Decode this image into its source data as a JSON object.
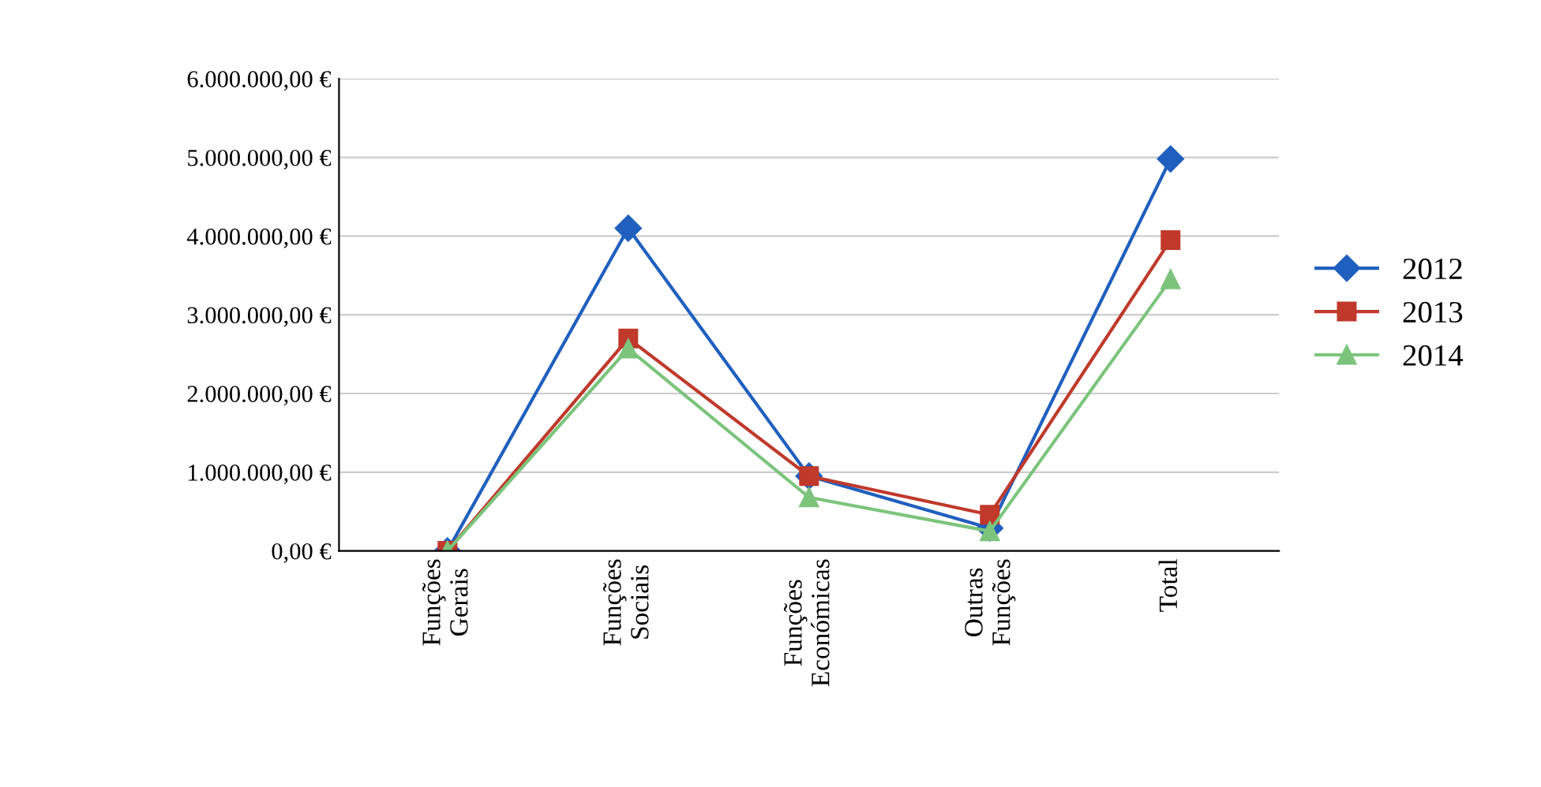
{
  "chart_data": {
    "type": "line",
    "categories": [
      "Funções Gerais",
      "Funções Sociais",
      "Funções Económicas",
      "Outras Funções",
      "Total"
    ],
    "series": [
      {
        "name": "2012",
        "color": "#1f5fbf",
        "marker": "diamond",
        "values": [
          0,
          4100000,
          950000,
          290000,
          4980000
        ]
      },
      {
        "name": "2013",
        "color": "#c0392b",
        "marker": "square",
        "values": [
          0,
          2700000,
          950000,
          460000,
          3950000
        ]
      },
      {
        "name": "2014",
        "color": "#7cc47c",
        "marker": "triangle",
        "values": [
          0,
          2570000,
          680000,
          250000,
          3450000
        ]
      }
    ],
    "ylim": [
      0,
      6000000
    ],
    "yticks": [
      {
        "value": 0,
        "label": "0,00 €"
      },
      {
        "value": 1000000,
        "label": "1.000.000,00 €"
      },
      {
        "value": 2000000,
        "label": "2.000.000,00 €"
      },
      {
        "value": 3000000,
        "label": "3.000.000,00 €"
      },
      {
        "value": 4000000,
        "label": "4.000.000,00 €"
      },
      {
        "value": 5000000,
        "label": "5.000.000,00 €"
      },
      {
        "value": 6000000,
        "label": "6.000.000,00 €"
      }
    ],
    "grid": "y",
    "legend": "right",
    "line_style": "solid"
  }
}
